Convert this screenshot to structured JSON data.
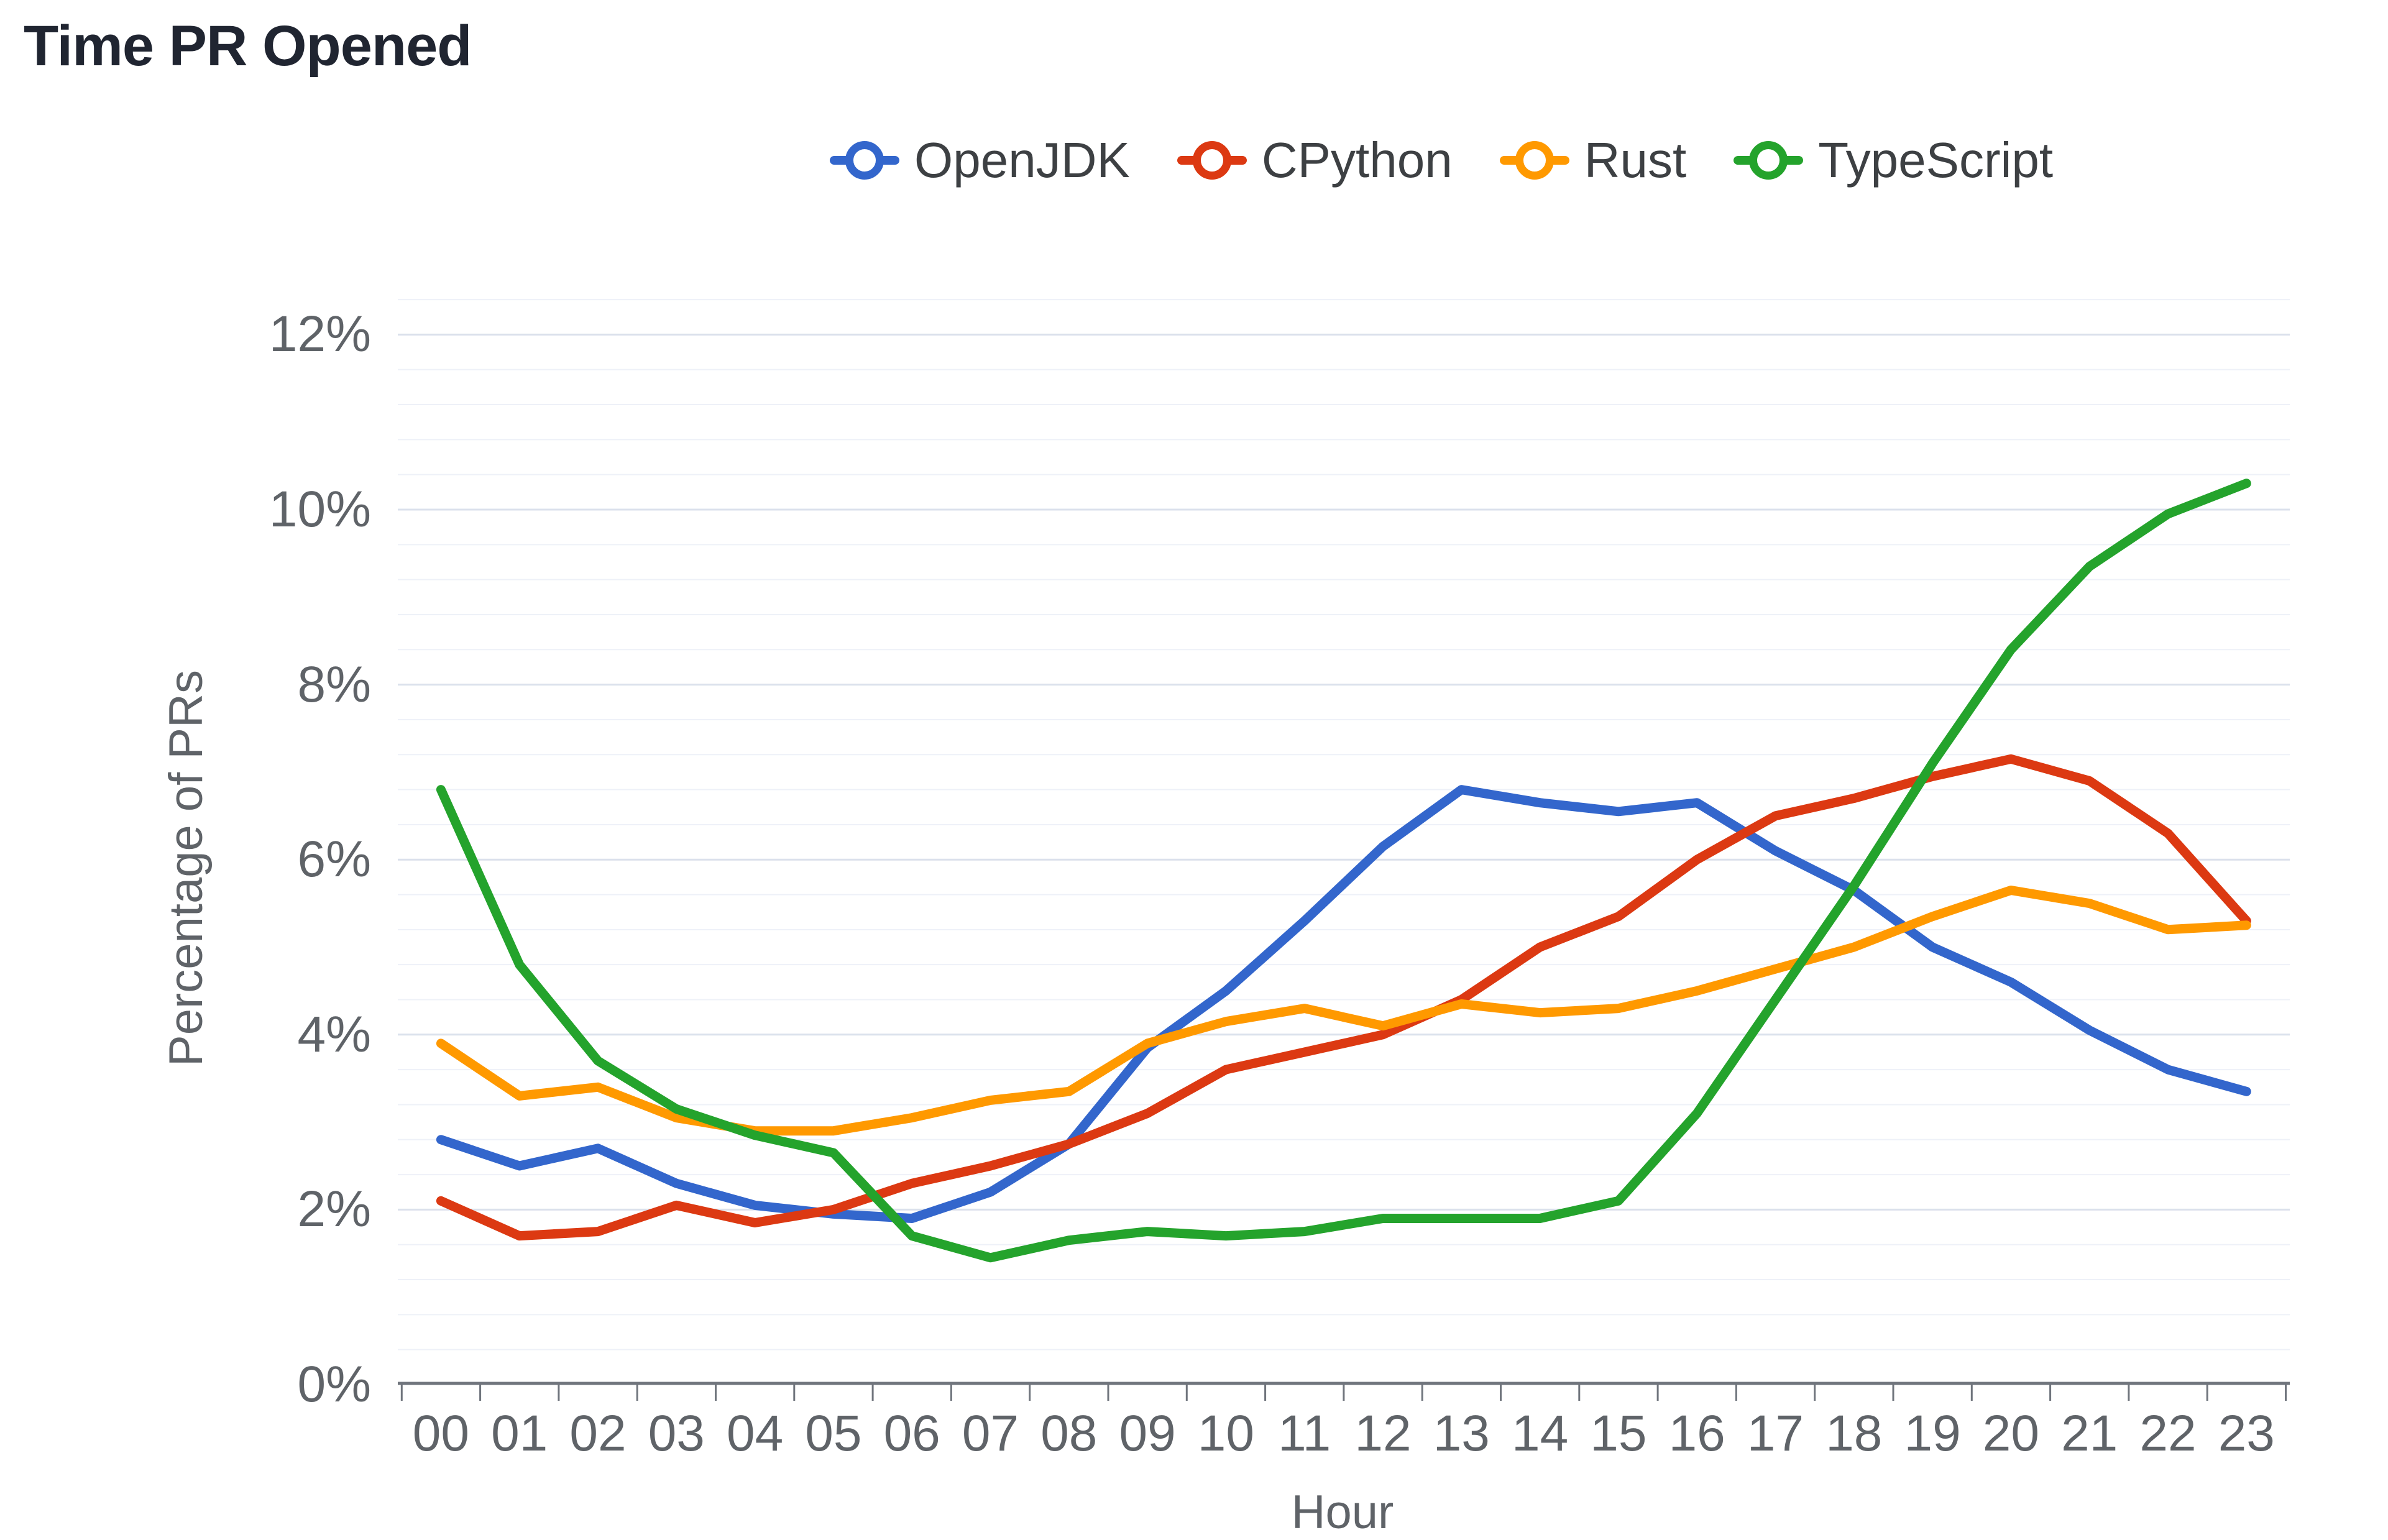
{
  "title": "Time PR Opened",
  "legend": {
    "items": [
      {
        "label": "OpenJDK",
        "color": "#3366cc"
      },
      {
        "label": "CPython",
        "color": "#dc3912"
      },
      {
        "label": "Rust",
        "color": "#ff9900"
      },
      {
        "label": "TypeScript",
        "color": "#24a32c"
      }
    ]
  },
  "chart_data": {
    "type": "line",
    "title": "Time PR Opened",
    "xlabel": "Hour",
    "ylabel": "Percentage of PRs",
    "categories": [
      "00",
      "01",
      "02",
      "03",
      "04",
      "05",
      "06",
      "07",
      "08",
      "09",
      "10",
      "11",
      "12",
      "13",
      "14",
      "15",
      "16",
      "17",
      "18",
      "19",
      "20",
      "21",
      "22",
      "23"
    ],
    "y_tick_labels": [
      "0%",
      "2%",
      "4%",
      "6%",
      "8%",
      "10%",
      "12%"
    ],
    "ylim": [
      0,
      12
    ],
    "y_major_step": 2,
    "y_minor_step": 0.4,
    "grid": "on",
    "legend_position": "top",
    "series": [
      {
        "name": "OpenJDK",
        "color": "#3366cc",
        "values": [
          2.8,
          2.5,
          2.7,
          2.3,
          2.05,
          1.95,
          1.9,
          2.2,
          2.75,
          3.85,
          4.5,
          5.3,
          6.15,
          6.8,
          6.65,
          6.55,
          6.65,
          6.1,
          5.65,
          5.0,
          4.6,
          4.05,
          3.6,
          3.35
        ]
      },
      {
        "name": "CPython",
        "color": "#dc3912",
        "values": [
          2.1,
          1.7,
          1.75,
          2.05,
          1.85,
          2.0,
          2.3,
          2.5,
          2.75,
          3.1,
          3.6,
          3.8,
          4.0,
          4.4,
          5.0,
          5.35,
          6.0,
          6.5,
          6.7,
          6.95,
          7.15,
          6.9,
          6.3,
          5.3
        ]
      },
      {
        "name": "Rust",
        "color": "#ff9900",
        "values": [
          3.9,
          3.3,
          3.4,
          3.05,
          2.9,
          2.9,
          3.05,
          3.25,
          3.35,
          3.9,
          4.15,
          4.3,
          4.1,
          4.35,
          4.25,
          4.3,
          4.5,
          4.75,
          5.0,
          5.35,
          5.65,
          5.5,
          5.2,
          5.25
        ]
      },
      {
        "name": "TypeScript",
        "color": "#24a32c",
        "values": [
          6.8,
          4.8,
          3.7,
          3.15,
          2.85,
          2.65,
          1.7,
          1.45,
          1.65,
          1.75,
          1.7,
          1.75,
          1.9,
          1.9,
          1.9,
          2.1,
          3.1,
          4.4,
          5.7,
          7.1,
          8.4,
          9.35,
          9.95,
          10.3
        ]
      }
    ]
  },
  "style_colors": {
    "major_grid": "#dbe1ec",
    "minor_grid": "#eef1f8",
    "axis": "#70757d"
  }
}
